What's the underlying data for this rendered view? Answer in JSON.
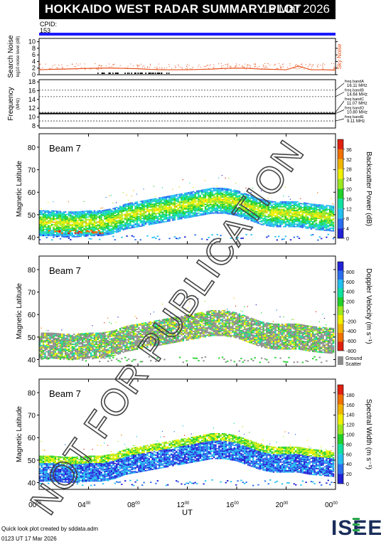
{
  "header": {
    "title": "HOKKAIDO WEST RADAR SUMMARY PLOT",
    "date": "16 Mar 2026",
    "cpid_label": "CPID:",
    "cpid_value": "153"
  },
  "footer": {
    "credit": "Quick look plot created by sddata.adm",
    "timestamp": "0123 UT 17 Mar 2026",
    "logo_text": "ISEE"
  },
  "watermark": "NOT FOR PUBLICATION",
  "colors": {
    "cpid_bar": "#1a1aff",
    "noise_line": "#e8501a",
    "ground_scatter": "#8c8c8c"
  },
  "chart_data": [
    {
      "type": "line",
      "ylabel": "Search Noise",
      "ylabel_sub": "log10 noise level (dB)",
      "yticks": [
        0,
        2,
        4,
        6,
        8,
        10
      ],
      "ylim": [
        0,
        11
      ],
      "legend": "Sky Noise",
      "series": [
        {
          "name": "Sky Noise",
          "x": [
            0,
            1,
            2,
            3,
            4,
            5,
            6,
            7,
            8,
            9,
            10,
            11,
            12,
            13,
            14,
            15,
            16,
            17,
            18,
            19,
            20,
            21,
            22,
            23,
            24
          ],
          "y": [
            1.5,
            1.6,
            1.7,
            1.8,
            1.9,
            2.0,
            2.0,
            1.9,
            1.8,
            1.6,
            1.5,
            1.5,
            1.5,
            1.6,
            1.7,
            1.9,
            2.0,
            1.9,
            1.7,
            1.6,
            1.5,
            2.6,
            1.5,
            1.5,
            1.4
          ]
        }
      ]
    },
    {
      "type": "line",
      "ylabel": "Frequency",
      "ylabel_sub": "(MHz)",
      "yticks": [
        8,
        10,
        12,
        14,
        16,
        18
      ],
      "ylim": [
        7.5,
        18.5
      ],
      "bands": [
        {
          "label": "freq bandA",
          "value_label": "16.11 MHz",
          "mhz": 16.11
        },
        {
          "label": "freq bandB",
          "value_label": "14.64 MHz",
          "mhz": 14.64
        },
        {
          "label": "freq bandC",
          "value_label": "11.07 MHz",
          "mhz": 11.07
        },
        {
          "label": "freq bandD",
          "value_label": "10.80 MHz",
          "mhz": 10.8
        },
        {
          "label": "freq bandE",
          "value_label": "9.11 MHz",
          "mhz": 9.11
        }
      ],
      "operating_frequency_mhz": 10.8
    },
    {
      "type": "heatmap",
      "beam_label": "Beam  7",
      "ylabel": "Magnetic Latitude",
      "yticks": [
        40,
        50,
        60,
        70,
        80
      ],
      "ylim": [
        37,
        86
      ],
      "colorbar": {
        "label": "Backscatter Power (dB)",
        "ticks": [
          "0",
          "4",
          "8",
          "12",
          "16",
          "20",
          "24",
          "28",
          "32",
          "36"
        ],
        "colors": [
          "#2222d6",
          "#2a6ef0",
          "#22bff0",
          "#10e0a0",
          "#22d02a",
          "#9be81e",
          "#f0f000",
          "#f0b400",
          "#f07000",
          "#e02010"
        ]
      },
      "band_lower_mlat": [
        45,
        45,
        44.5,
        44.5,
        45,
        45,
        46,
        48,
        49,
        50,
        51,
        52,
        53,
        54,
        55,
        55,
        54,
        52,
        50,
        49,
        49,
        49,
        48,
        47.5,
        47
      ]
    },
    {
      "type": "heatmap",
      "beam_label": "Beam  7",
      "ylabel": "Magnetic Latitude",
      "yticks": [
        40,
        50,
        60,
        70,
        80
      ],
      "ylim": [
        37,
        86
      ],
      "colorbar": {
        "label": "Doppler Velocity (m s⁻¹)",
        "ticks": [
          "-800",
          "-600",
          "-400",
          "-200",
          "0",
          "200",
          "400",
          "600",
          "800"
        ],
        "colors": [
          "#e02010",
          "#f07000",
          "#f0b400",
          "#f0f000",
          "#9be81e",
          "#22d02a",
          "#10e0a0",
          "#22bff0",
          "#2a6ef0",
          "#2222d6"
        ],
        "extra_label": "Ground Scatter"
      },
      "band_lower_mlat": [
        45,
        45,
        44.5,
        44.5,
        45,
        45,
        46,
        48,
        49,
        50,
        51,
        52,
        53,
        54,
        55,
        55,
        54,
        52,
        50,
        49,
        49,
        49,
        48,
        47.5,
        47
      ]
    },
    {
      "type": "heatmap",
      "beam_label": "Beam  7",
      "ylabel": "Magnetic Latitude",
      "yticks": [
        40,
        50,
        60,
        70,
        80
      ],
      "ylim": [
        37,
        86
      ],
      "colorbar": {
        "label": "Spectral Width (m s⁻¹)",
        "ticks": [
          "0",
          "20",
          "40",
          "60",
          "80",
          "100",
          "120",
          "140",
          "160",
          "180"
        ],
        "colors": [
          "#2222d6",
          "#2a6ef0",
          "#22bff0",
          "#10e0a0",
          "#22d02a",
          "#9be81e",
          "#f0f000",
          "#f0b400",
          "#f07000",
          "#e02010"
        ]
      },
      "band_lower_mlat": [
        45,
        45,
        44.5,
        44.5,
        45,
        45,
        46,
        48,
        49,
        50,
        51,
        52,
        53,
        54,
        55,
        55,
        54,
        52,
        50,
        49,
        49,
        49,
        48,
        47.5,
        47
      ]
    }
  ],
  "xaxis": {
    "label": "UT",
    "ticks": [
      {
        "hour": 0,
        "main": "00",
        "sup": "00"
      },
      {
        "hour": 4,
        "main": "04",
        "sup": "00"
      },
      {
        "hour": 8,
        "main": "08",
        "sup": "00"
      },
      {
        "hour": 12,
        "main": "12",
        "sup": "00"
      },
      {
        "hour": 16,
        "main": "16",
        "sup": "00"
      },
      {
        "hour": 20,
        "main": "20",
        "sup": "00"
      },
      {
        "hour": 24,
        "main": "00",
        "sup": "00"
      }
    ]
  }
}
